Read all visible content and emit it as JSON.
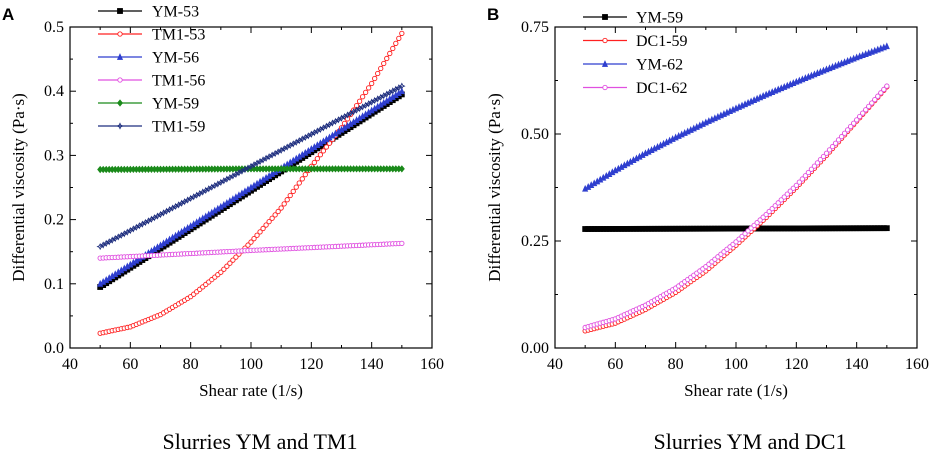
{
  "chart_data": [
    {
      "type": "line",
      "panel_label": "A",
      "caption": "Slurries YM and TM1",
      "xlabel": "Shear rate (1/s)",
      "ylabel": "Differential viscosity (Pa·s)",
      "xlim": [
        40,
        160
      ],
      "ylim": [
        0.0,
        0.5
      ],
      "xticks": [
        "40",
        "60",
        "80",
        "100",
        "120",
        "140",
        "160"
      ],
      "yticks": [
        "0.0",
        "0.1",
        "0.2",
        "0.3",
        "0.4",
        "0.5"
      ],
      "legend_position": "top-left",
      "series": [
        {
          "name": "YM-53",
          "color": "#000000",
          "marker": "square",
          "x": [
            50,
            75,
            100,
            125,
            150
          ],
          "y": [
            0.095,
            0.17,
            0.245,
            0.32,
            0.395
          ]
        },
        {
          "name": "TM1-53",
          "color": "#ff2020",
          "marker": "circle",
          "x": [
            50,
            60,
            70,
            80,
            90,
            100,
            110,
            120,
            130,
            140,
            150
          ],
          "y": [
            0.023,
            0.033,
            0.052,
            0.08,
            0.118,
            0.165,
            0.218,
            0.283,
            0.343,
            0.412,
            0.49
          ]
        },
        {
          "name": "YM-56",
          "color": "#2f3fcf",
          "marker": "triangle",
          "x": [
            50,
            75,
            100,
            125,
            150
          ],
          "y": [
            0.1,
            0.175,
            0.25,
            0.325,
            0.4
          ]
        },
        {
          "name": "TM1-56",
          "color": "#e050e0",
          "marker": "circle",
          "x": [
            50,
            100,
            150
          ],
          "y": [
            0.14,
            0.152,
            0.163
          ]
        },
        {
          "name": "YM-59",
          "color": "#1a8a1a",
          "marker": "diamond",
          "x": [
            50,
            100,
            150
          ],
          "y": [
            0.278,
            0.279,
            0.279
          ]
        },
        {
          "name": "TM1-59",
          "color": "#1f2f7f",
          "marker": "star",
          "x": [
            50,
            100,
            150
          ],
          "y": [
            0.158,
            0.283,
            0.408
          ]
        }
      ]
    },
    {
      "type": "line",
      "panel_label": "B",
      "caption": "Slurries YM and DC1",
      "xlabel": "Shear rate (1/s)",
      "ylabel": "Differential viscosity (Pa·s)",
      "xlim": [
        40,
        160
      ],
      "ylim": [
        0.0,
        0.75
      ],
      "xticks": [
        "40",
        "60",
        "80",
        "100",
        "120",
        "140",
        "160"
      ],
      "yticks": [
        "0.00",
        "0.25",
        "0.50",
        "0.75"
      ],
      "legend_position": "top-left",
      "series": [
        {
          "name": "YM-59",
          "color": "#000000",
          "marker": "square",
          "x": [
            50,
            100,
            150
          ],
          "y": [
            0.278,
            0.279,
            0.28
          ]
        },
        {
          "name": "DC1-59",
          "color": "#ff2020",
          "marker": "circle",
          "x": [
            50,
            60,
            70,
            80,
            90,
            100,
            110,
            120,
            130,
            140,
            150
          ],
          "y": [
            0.04,
            0.058,
            0.09,
            0.13,
            0.18,
            0.24,
            0.305,
            0.375,
            0.45,
            0.53,
            0.61
          ]
        },
        {
          "name": "YM-62",
          "color": "#2f3fcf",
          "marker": "triangle",
          "x": [
            50,
            60,
            70,
            80,
            90,
            100,
            110,
            120,
            130,
            140,
            150
          ],
          "y": [
            0.372,
            0.415,
            0.455,
            0.492,
            0.527,
            0.56,
            0.592,
            0.622,
            0.651,
            0.679,
            0.705
          ]
        },
        {
          "name": "DC1-62",
          "color": "#e050e0",
          "marker": "circle",
          "x": [
            50,
            60,
            70,
            80,
            90,
            100,
            110,
            120,
            130,
            140,
            150
          ],
          "y": [
            0.048,
            0.068,
            0.1,
            0.14,
            0.19,
            0.248,
            0.312,
            0.38,
            0.455,
            0.533,
            0.612
          ]
        }
      ]
    }
  ]
}
